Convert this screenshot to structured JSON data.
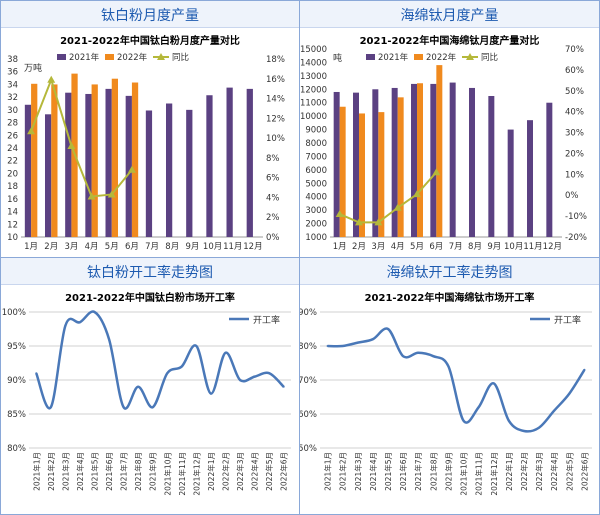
{
  "panels": {
    "tl_title": "钛白粉月度产量",
    "tr_title": "海绵钛月度产量",
    "bl_title": "钛白粉开工率走势图",
    "br_title": "海绵钛开工率走势图"
  },
  "chart_data": [
    {
      "type": "bar",
      "title": "2021-2022年中国钛白粉月度产量对比",
      "ylabel": "万吨",
      "categories": [
        "1月",
        "2月",
        "3月",
        "4月",
        "5月",
        "6月",
        "7月",
        "8月",
        "9月",
        "10月",
        "11月",
        "12月"
      ],
      "ylim": [
        10,
        38
      ],
      "yticks": [
        10,
        12,
        14,
        16,
        18,
        20,
        22,
        24,
        26,
        28,
        30,
        32,
        34,
        36,
        38
      ],
      "y2lim": [
        0,
        18
      ],
      "y2ticks": [
        "0%",
        "2%",
        "4%",
        "6%",
        "8%",
        "10%",
        "12%",
        "14%",
        "16%",
        "18%"
      ],
      "series": [
        {
          "name": "2021年",
          "color": "#5b4182",
          "values": [
            30.8,
            29.3,
            32.7,
            32.5,
            33.3,
            32.2,
            29.9,
            31,
            30,
            32.3,
            33.5,
            33.3
          ]
        },
        {
          "name": "2022年",
          "color": "#f08a1e",
          "values": [
            34.1,
            34,
            35.7,
            34,
            34.9,
            34.3,
            null,
            null,
            null,
            null,
            null,
            null
          ]
        },
        {
          "name": "同比",
          "color": "#b5b83a",
          "axis": "right",
          "values": [
            10.7,
            15.9,
            9.2,
            4.1,
            4.3,
            6.8,
            null,
            null,
            null,
            null,
            null,
            null
          ]
        }
      ]
    },
    {
      "type": "bar",
      "title": "2021-2022年中国海绵钛月度产量对比",
      "ylabel": "吨",
      "categories": [
        "1月",
        "2月",
        "3月",
        "4月",
        "5月",
        "6月",
        "7月",
        "8月",
        "9月",
        "10月",
        "11月",
        "12月"
      ],
      "ylim": [
        1000,
        15000
      ],
      "yticks": [
        1000,
        2000,
        3000,
        4000,
        5000,
        6000,
        7000,
        8000,
        9000,
        10000,
        11000,
        12000,
        13000,
        14000,
        15000
      ],
      "y2lim": [
        -20,
        70
      ],
      "y2ticks": [
        "-20%",
        "-10%",
        "0%",
        "10%",
        "20%",
        "30%",
        "40%",
        "50%",
        "60%",
        "70%"
      ],
      "series": [
        {
          "name": "2021年",
          "color": "#5b4182",
          "values": [
            11800,
            11750,
            12000,
            12100,
            12400,
            12400,
            12500,
            12100,
            11500,
            9000,
            9700,
            11000
          ]
        },
        {
          "name": "2022年",
          "color": "#f08a1e",
          "values": [
            10700,
            10200,
            10300,
            11400,
            12450,
            13800,
            null,
            null,
            null,
            null,
            null,
            null
          ]
        },
        {
          "name": "同比",
          "color": "#b5b83a",
          "axis": "right",
          "values": [
            -9,
            -13,
            -13,
            -6,
            0.5,
            11,
            null,
            null,
            null,
            null,
            null,
            null
          ]
        }
      ]
    },
    {
      "type": "line",
      "title": "2021-2022年中国钛白粉市场开工率",
      "series_name": "开工率",
      "color": "#4a78b8",
      "ylim": [
        80,
        100
      ],
      "yticks": [
        "80%",
        "85%",
        "90%",
        "95%",
        "100%"
      ],
      "ytick_values": [
        80,
        85,
        90,
        95,
        100
      ],
      "categories": [
        "2021年1月",
        "2021年2月",
        "2021年3月",
        "2021年4月",
        "2021年5月",
        "2021年6月",
        "2021年7月",
        "2021年8月",
        "2021年9月",
        "2021年10月",
        "2021年11月",
        "2021年12月",
        "2022年1月",
        "2022年2月",
        "2022年3月",
        "2022年4月",
        "2022年5月",
        "2022年6月"
      ],
      "points": [
        91,
        86,
        98,
        98.5,
        100,
        96,
        86,
        89,
        86,
        91,
        92,
        95,
        88,
        94,
        90,
        90.5,
        91,
        89
      ]
    },
    {
      "type": "line",
      "title": "2021-2022年中国海绵钛市场开工率",
      "series_name": "开工率",
      "color": "#4a78b8",
      "ylim": [
        50,
        90
      ],
      "yticks": [
        "50%",
        "60%",
        "70%",
        "80%",
        "90%"
      ],
      "ytick_values": [
        50,
        60,
        70,
        80,
        90
      ],
      "categories": [
        "2021年1月",
        "2021年2月",
        "2021年3月",
        "2021年4月",
        "2021年5月",
        "2021年6月",
        "2021年7月",
        "2021年8月",
        "2021年9月",
        "2021年10月",
        "2021年11月",
        "2021年12月",
        "2022年1月",
        "2022年2月",
        "2022年3月",
        "2022年4月",
        "2022年5月",
        "2022年6月"
      ],
      "points": [
        80,
        80,
        81,
        82,
        85,
        77,
        78,
        77,
        74,
        58,
        62,
        69,
        58,
        55,
        56,
        61,
        66,
        73
      ]
    }
  ]
}
